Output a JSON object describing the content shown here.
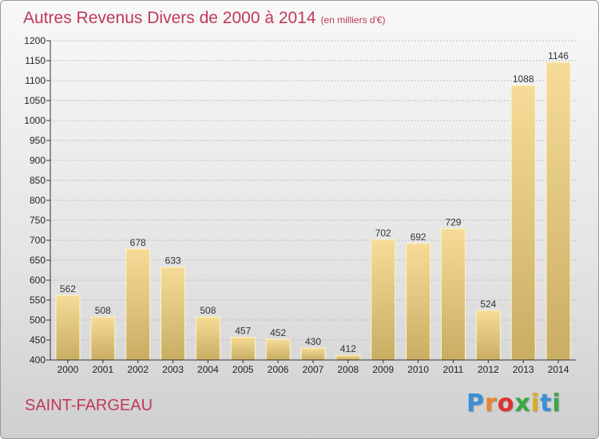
{
  "title": "Autres Revenus Divers de 2000 à 2014",
  "title_unit": "(en milliers d'€)",
  "place": "SAINT-FARGEAU",
  "brand": {
    "letters": [
      "P",
      "r",
      "o",
      "x",
      "i",
      "t",
      "i"
    ],
    "colors": [
      "#3a8fd6",
      "#e8842c",
      "#e03030",
      "#3aa845",
      "#d6b01a",
      "#3a8fd6",
      "#3aa845"
    ]
  },
  "colors": {
    "title": "#c0395a",
    "bar_light": "#f6dc98",
    "bar_dark": "#c9ad63",
    "grid": "#bdbdbd"
  },
  "chart_data": {
    "type": "bar",
    "title": "Autres Revenus Divers de 2000 à 2014",
    "ylabel": "",
    "xlabel": "",
    "categories": [
      "2000",
      "2001",
      "2002",
      "2003",
      "2004",
      "2005",
      "2006",
      "2007",
      "2008",
      "2009",
      "2010",
      "2011",
      "2012",
      "2013",
      "2014"
    ],
    "values": [
      562,
      508,
      678,
      633,
      508,
      457,
      452,
      430,
      412,
      702,
      692,
      729,
      524,
      1088,
      1146
    ],
    "ylim": [
      400,
      1200
    ],
    "yticks": [
      400,
      450,
      500,
      550,
      600,
      650,
      700,
      750,
      800,
      850,
      900,
      950,
      1000,
      1050,
      1100,
      1150,
      1200
    ],
    "grid": true,
    "legend": "none"
  }
}
